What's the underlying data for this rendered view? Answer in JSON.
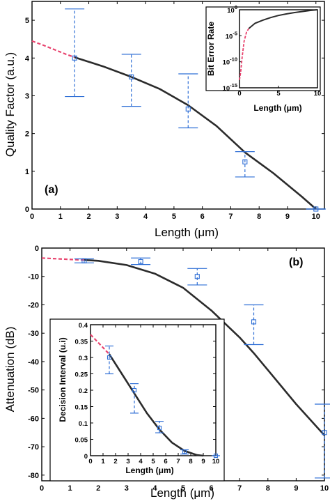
{
  "chart_data": [
    {
      "type": "line",
      "panel_label": "(a)",
      "xlabel": "Length (μm)",
      "ylabel": "Quality Factor (a.u.)",
      "xlim": [
        0,
        10.3
      ],
      "ylim": [
        0,
        5.5
      ],
      "xticks": [
        "0",
        "1",
        "2",
        "3",
        "4",
        "5",
        "6",
        "7",
        "8",
        "9",
        "10"
      ],
      "yticks": [
        "0",
        "1",
        "2",
        "3",
        "4",
        "5"
      ],
      "series": [
        {
          "style": "dashed-pink",
          "x": [
            0,
            0.4,
            0.8,
            1.2,
            1.5
          ],
          "y": [
            4.45,
            4.34,
            4.22,
            4.1,
            4.02
          ]
        },
        {
          "style": "solid-black",
          "x": [
            1.5,
            2.5,
            3.5,
            4.5,
            5.5,
            6.5,
            7.5,
            8.5,
            9.5,
            10
          ],
          "y": [
            4.02,
            3.78,
            3.5,
            3.18,
            2.75,
            2.2,
            1.5,
            0.95,
            0.33,
            0.0
          ]
        },
        {
          "style": "errorbar",
          "x": [
            1.5,
            3.5,
            5.5,
            7.5,
            10
          ],
          "y": [
            4.0,
            3.5,
            2.65,
            1.25,
            0.0
          ],
          "lower": [
            2.98,
            2.72,
            2.15,
            0.85,
            0.0
          ],
          "upper": [
            5.3,
            4.1,
            3.58,
            1.52,
            0.0
          ]
        }
      ],
      "inset": {
        "ylabel": "Bit Error Rate",
        "xlabel": "Length (μm)",
        "xlim": [
          0,
          10
        ],
        "xticks": [
          "0",
          "5",
          "10"
        ],
        "yticks": [
          "10^0",
          "10^-5",
          "10^-10",
          "10^-15"
        ],
        "ylim_log10": [
          -15,
          0
        ],
        "series": [
          {
            "style": "dashed-pink",
            "x": [
              0,
              0.15,
              0.35,
              0.6,
              0.9,
              1.2
            ],
            "y_log10": [
              -13.5,
              -12,
              -9,
              -6,
              -4.3,
              -3.6
            ]
          },
          {
            "style": "solid-black",
            "x": [
              1.2,
              2,
              3,
              4,
              5,
              6,
              7,
              8,
              9,
              10
            ],
            "y_log10": [
              -3.6,
              -2.6,
              -2.0,
              -1.5,
              -1.1,
              -0.8,
              -0.55,
              -0.35,
              -0.15,
              0
            ]
          }
        ]
      }
    },
    {
      "type": "line",
      "panel_label": "(b)",
      "xlabel": "Length (μm)",
      "ylabel": "Attenuation (dB)",
      "xlim": [
        0,
        10
      ],
      "ylim": [
        -82,
        0
      ],
      "xticks": [
        "0",
        "1",
        "2",
        "3",
        "4",
        "5",
        "6",
        "7",
        "8",
        "9",
        "10"
      ],
      "yticks": [
        "0",
        "-10",
        "-20",
        "-30",
        "-40",
        "-50",
        "-60",
        "-70",
        "-80"
      ],
      "series": [
        {
          "style": "dashed-pink",
          "x": [
            0,
            0.4,
            0.8,
            1.2,
            1.5
          ],
          "y": [
            -3.5,
            -3.7,
            -3.9,
            -4.1,
            -4.2
          ]
        },
        {
          "style": "solid-black",
          "x": [
            1.5,
            2,
            3,
            4,
            5,
            6,
            7,
            7.5,
            8,
            9,
            10
          ],
          "y": [
            -4.2,
            -4.5,
            -6.0,
            -9.0,
            -14.0,
            -22.0,
            -31.5,
            -37.0,
            -43.0,
            -55.0,
            -66.0
          ]
        },
        {
          "style": "errorbar",
          "x": [
            1.5,
            3.5,
            5.5,
            7.5,
            10
          ],
          "y": [
            -4.5,
            -4.8,
            -10.0,
            -26.0,
            -65.0
          ],
          "lower": [
            -5.2,
            -5.8,
            -13.0,
            -34.0,
            -81.0
          ],
          "upper": [
            -3.8,
            -3.5,
            -7.2,
            -20.0,
            -55.0
          ]
        }
      ],
      "inset": {
        "ylabel": "Decision Interval (u.i)",
        "xlabel": "Length (μm)",
        "xlim": [
          0,
          10
        ],
        "ylim": [
          0,
          0.4
        ],
        "xticks": [
          "0",
          "1",
          "2",
          "3",
          "4",
          "5",
          "6",
          "7",
          "8",
          "9",
          "10"
        ],
        "yticks": [
          "0",
          "0.05",
          "0.1",
          "0.15",
          "0.2",
          "0.25",
          "0.3",
          "0.35",
          "0.4"
        ],
        "series": [
          {
            "style": "dashed-pink",
            "x": [
              0,
              0.5,
              1.0,
              1.5
            ],
            "y": [
              0.37,
              0.35,
              0.33,
              0.31
            ]
          },
          {
            "style": "solid-black",
            "x": [
              1.5,
              2.5,
              3.5,
              4.5,
              5.5,
              6.5,
              7.5,
              8.5,
              9.0
            ],
            "y": [
              0.31,
              0.25,
              0.19,
              0.13,
              0.08,
              0.04,
              0.015,
              0.002,
              0.0
            ]
          },
          {
            "style": "errorbar",
            "x": [
              1.5,
              3.5,
              5.5,
              7.5,
              10
            ],
            "y": [
              0.3,
              0.2,
              0.085,
              0.012,
              0.0
            ],
            "lower": [
              0.25,
              0.13,
              0.07,
              0.005,
              0.0
            ],
            "upper": [
              0.335,
              0.22,
              0.105,
              0.018,
              0.0
            ]
          }
        ]
      }
    }
  ],
  "colors": {
    "line": "#2b2b2b",
    "extrapolation": "#e8436e",
    "error_bars": "#2f6fd6"
  }
}
